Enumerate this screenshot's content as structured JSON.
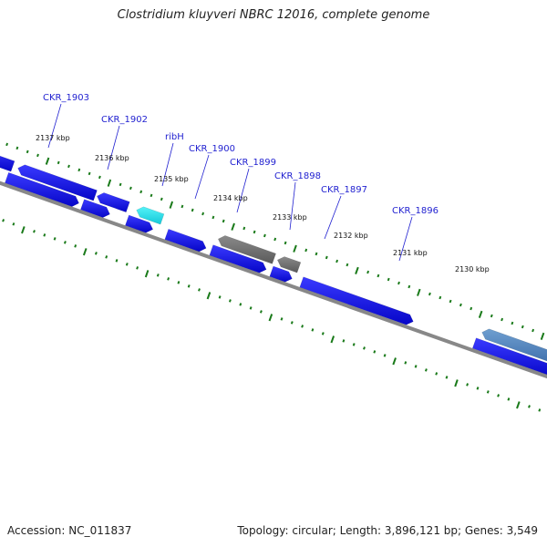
{
  "title": "Clostridium kluyveri NBRC 12016, complete genome",
  "footer": {
    "accession": "Accession: NC_011837",
    "summary": "Topology: circular; Length: 3,896,121 bp; Genes: 3,549"
  },
  "colors": {
    "gene": "#1010ee",
    "highlight": "#22e6ee",
    "pseudo": "#777777",
    "label": "#1f1fd0",
    "ticks": "#1a7a1a",
    "backbone": "#888888"
  },
  "gene_labels": [
    "CKR_1903",
    "CKR_1902",
    "ribH",
    "CKR_1900",
    "CKR_1899",
    "CKR_1898",
    "CKR_1897",
    "CKR_1896"
  ],
  "kbp_ticks": [
    "2137 kbp",
    "2136 kbp",
    "2135 kbp",
    "2134 kbp",
    "2133 kbp",
    "2132 kbp",
    "2131 kbp",
    "2130 kbp"
  ]
}
